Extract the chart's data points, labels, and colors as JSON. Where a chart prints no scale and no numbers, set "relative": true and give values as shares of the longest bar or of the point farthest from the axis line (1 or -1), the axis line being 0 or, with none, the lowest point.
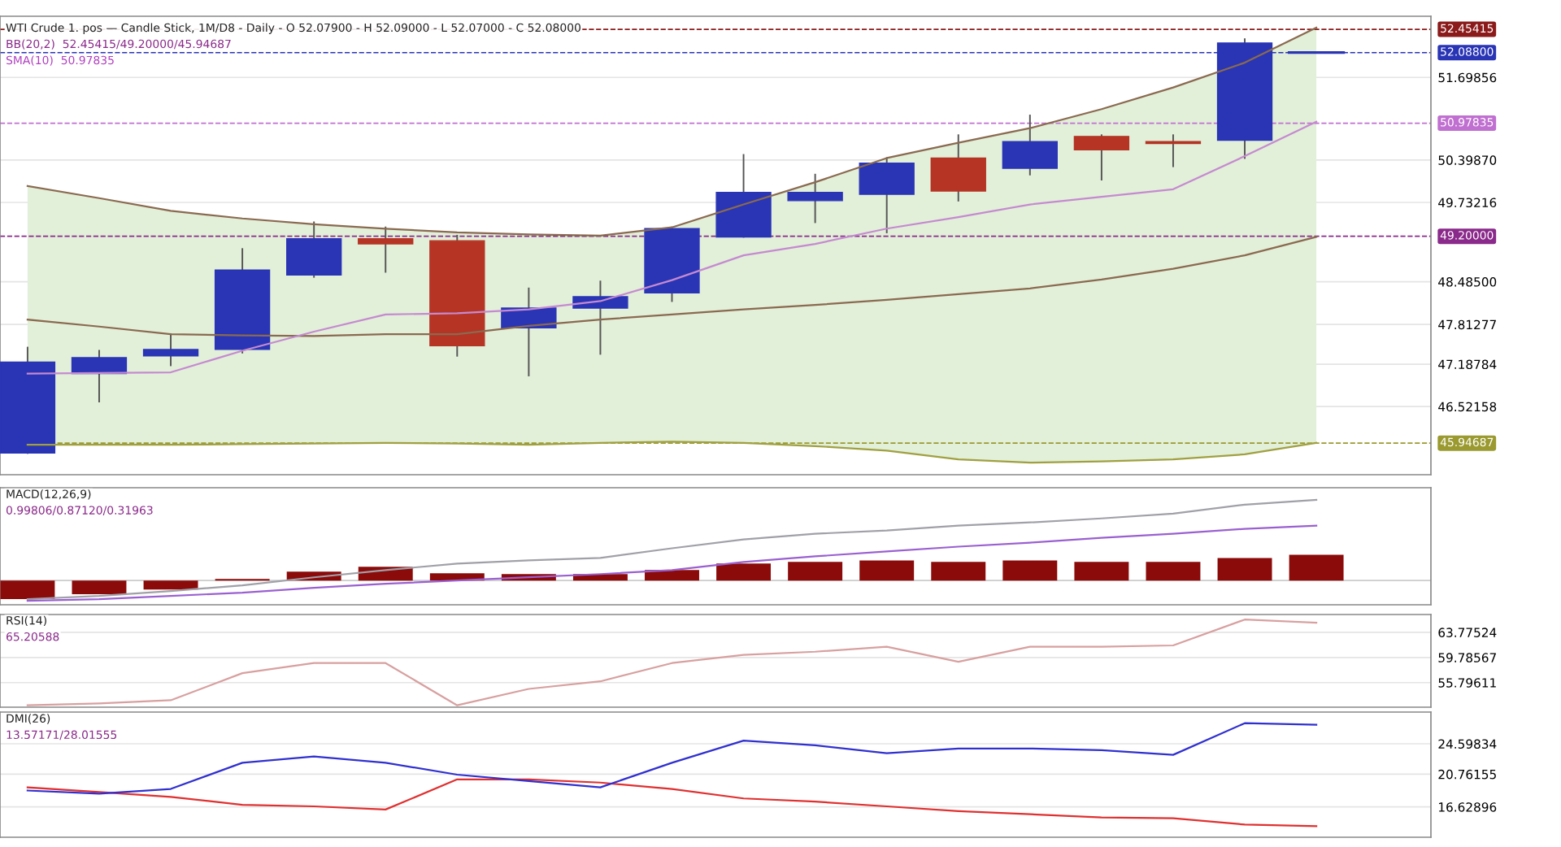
{
  "chart_data": [
    {
      "type": "candlestick",
      "title": "WTI Crude 1. pos — Candle Stick, 1M/D8 - Daily - O 52.07900 - H 52.09000 - L 52.07000 - C 52.08000",
      "subtitle": "BB(20,2)  52.45415/49.20000/45.94687",
      "annotations": [
        "SMA(10)  50.97835"
      ],
      "categories": [
        null,
        null,
        null,
        null,
        null,
        null,
        null,
        null,
        null,
        null,
        null,
        null,
        null,
        null,
        null,
        null,
        null,
        null,
        null
      ],
      "ohlc": [
        [
          45.79,
          47.45,
          45.79,
          47.22
        ],
        [
          47.04,
          47.4,
          46.6,
          47.29
        ],
        [
          47.32,
          47.66,
          47.17,
          47.42
        ],
        [
          47.42,
          49.0,
          47.37,
          48.67
        ],
        [
          48.59,
          49.42,
          48.56,
          49.16
        ],
        [
          49.16,
          49.34,
          48.64,
          49.08
        ],
        [
          49.13,
          49.21,
          47.32,
          47.48
        ],
        [
          47.76,
          48.38,
          47.01,
          48.07
        ],
        [
          48.07,
          48.49,
          47.35,
          48.25
        ],
        [
          48.31,
          49.34,
          48.18,
          49.32
        ],
        [
          49.19,
          50.48,
          49.19,
          49.89
        ],
        [
          49.76,
          50.17,
          49.42,
          49.89
        ],
        [
          49.86,
          50.43,
          49.26,
          50.35
        ],
        [
          50.43,
          50.79,
          49.76,
          49.91
        ],
        [
          50.27,
          51.1,
          50.17,
          50.69
        ],
        [
          50.77,
          50.79,
          50.09,
          50.56
        ],
        [
          50.69,
          50.79,
          50.3,
          50.66
        ],
        [
          50.71,
          52.3,
          50.43,
          52.24
        ],
        [
          52.09,
          52.09,
          52.09,
          52.09
        ]
      ],
      "colors": [
        "#2a35b5",
        "#2a35b5",
        "#2a35b5",
        "#2a35b5",
        "#2a35b5",
        "#b53424",
        "#b53424",
        "#2a35b5",
        "#2a35b5",
        "#2a35b5",
        "#2a35b5",
        "#2a35b5",
        "#2a35b5",
        "#b53424",
        "#2a35b5",
        "#b53424",
        "#b53424",
        "#2a35b5",
        "#2a35b5"
      ],
      "series": [
        {
          "type": "line",
          "color": "#8a6a50",
          "values": [
            49.99,
            49.8,
            49.6,
            49.48,
            49.39,
            49.32,
            49.26,
            49.23,
            49.21,
            49.34,
            49.7,
            50.05,
            50.43,
            50.67,
            50.9,
            51.2,
            51.54,
            51.93,
            52.48
          ]
        },
        {
          "type": "line",
          "color": "#a0a040",
          "values": [
            45.92,
            45.92,
            45.92,
            45.93,
            45.94,
            45.95,
            45.94,
            45.92,
            45.95,
            45.97,
            45.95,
            45.9,
            45.83,
            45.69,
            45.64,
            45.66,
            45.69,
            45.77,
            45.95
          ]
        },
        {
          "type": "line",
          "color": "#8a6a50",
          "values": [
            47.89,
            47.78,
            47.66,
            47.64,
            47.63,
            47.66,
            47.66,
            47.79,
            47.89,
            47.97,
            48.05,
            48.12,
            48.2,
            48.29,
            48.38,
            48.52,
            48.69,
            48.9,
            49.19
          ],
          "upper": [
            49.99,
            49.8,
            49.6,
            49.48,
            49.39,
            49.32,
            49.26,
            49.23,
            49.21,
            49.34,
            49.7,
            50.05,
            50.43,
            50.67,
            50.9,
            51.2,
            51.54,
            51.93,
            52.48
          ],
          "lower": [
            45.92,
            45.92,
            45.92,
            45.93,
            45.94,
            45.95,
            45.94,
            45.92,
            45.95,
            45.97,
            45.95,
            45.9,
            45.83,
            45.69,
            45.64,
            45.66,
            45.69,
            45.77,
            45.95
          ]
        },
        {
          "type": "line",
          "color": "#c58ad0",
          "values": [
            47.04,
            47.05,
            47.06,
            47.4,
            47.7,
            47.97,
            47.99,
            48.05,
            48.18,
            48.51,
            48.9,
            49.08,
            49.32,
            49.5,
            49.7,
            49.82,
            49.94,
            50.46,
            51.0
          ]
        }
      ],
      "ref_lines": [
        {
          "axis": "y",
          "value": 52.45415,
          "label": "52.45415",
          "color": "#8b1a1a",
          "line_style": "dashed"
        },
        {
          "axis": "y",
          "value": 52.088,
          "label": "52.08800",
          "color": "#2a35b5",
          "line_style": "dashed"
        },
        {
          "axis": "y",
          "value": 50.97835,
          "label": "50.97835",
          "color": "#c070d0",
          "line_style": "dashed"
        },
        {
          "axis": "y",
          "value": 49.2,
          "label": "49.20000",
          "color": "#8a2a8a",
          "line_style": "dashed"
        },
        {
          "axis": "y",
          "value": 45.94687,
          "label": "45.94687",
          "color": "#9a9a30",
          "line_style": "dashed"
        }
      ],
      "ylim": [
        45.45,
        52.66
      ],
      "yticks": [
        46.52158,
        47.18784,
        47.81277,
        {
          "value": 48.485,
          "label": "48.48500"
        },
        49.73216,
        {
          "value": 50.3987,
          "label": "50.39870"
        },
        51.69856
      ],
      "grid": "y",
      "tick_labels": "y"
    },
    {
      "type": "bar",
      "title": "MACD(12,26,9)",
      "subtitle": "0.99806/0.87120/0.31963",
      "relative": true,
      "tick_labels": false,
      "categories": [
        null,
        null,
        null,
        null,
        null,
        null,
        null,
        null,
        null,
        null,
        null,
        null,
        null,
        null,
        null,
        null,
        null,
        null,
        null
      ],
      "series": [
        {
          "type": "bar",
          "color": "#8b0a0a",
          "values": [
            -0.23,
            -0.17,
            -0.11,
            0.02,
            0.11,
            0.17,
            0.09,
            0.08,
            0.08,
            0.13,
            0.21,
            0.23,
            0.25,
            0.23,
            0.25,
            0.23,
            0.23,
            0.28,
            0.32
          ]
        },
        {
          "type": "line",
          "color": "#a0a0a8",
          "values": [
            -0.23,
            -0.19,
            -0.13,
            -0.06,
            0.04,
            0.13,
            0.21,
            0.25,
            0.28,
            0.4,
            0.51,
            0.58,
            0.62,
            0.68,
            0.72,
            0.77,
            0.83,
            0.94,
            1.0
          ]
        },
        {
          "type": "line",
          "color": "#9a60d0",
          "values": [
            -0.25,
            -0.23,
            -0.19,
            -0.15,
            -0.09,
            -0.04,
            0,
            0.04,
            0.08,
            0.13,
            0.23,
            0.3,
            0.36,
            0.42,
            0.47,
            0.53,
            0.58,
            0.64,
            0.68
          ]
        }
      ]
    },
    {
      "type": "line",
      "title": "RSI(14)",
      "subtitle": "65.20588",
      "categories": [
        null,
        null,
        null,
        null,
        null,
        null,
        null,
        null,
        null,
        null,
        null,
        null,
        null,
        null,
        null,
        null,
        null,
        null,
        null
      ],
      "series": [
        {
          "color": "#d8a0a0",
          "values": [
            52.2,
            52.5,
            53.0,
            57.3,
            58.9,
            58.9,
            52.2,
            54.8,
            56.0,
            58.9,
            60.2,
            60.7,
            61.5,
            59.1,
            61.5,
            61.5,
            61.7,
            65.8,
            65.3
          ]
        }
      ],
      "ylim": [
        51.9,
        66.6
      ],
      "yticks": [
        55.79611,
        59.78567,
        63.77524
      ],
      "grid": "y",
      "tick_labels": "y"
    },
    {
      "type": "line",
      "title": "DMI(26)",
      "subtitle": "13.57171/28.01555",
      "categories": [
        null,
        null,
        null,
        null,
        null,
        null,
        null,
        null,
        null,
        null,
        null,
        null,
        null,
        null,
        null,
        null,
        null,
        null,
        null
      ],
      "series": [
        {
          "color": "#e03030",
          "values": [
            19.1,
            18.5,
            17.9,
            16.9,
            16.7,
            16.3,
            20.1,
            20.1,
            19.7,
            18.9,
            17.7,
            17.3,
            16.7,
            16.1,
            15.7,
            15.3,
            15.2,
            14.4,
            14.2
          ]
        },
        {
          "color": "#3030d0",
          "values": [
            18.7,
            18.3,
            18.9,
            22.2,
            23.0,
            22.2,
            20.7,
            19.9,
            19.1,
            22.2,
            25.0,
            24.4,
            23.4,
            24.0,
            24.0,
            23.8,
            23.2,
            27.2,
            27.0
          ]
        }
      ],
      "ylim": [
        12.8,
        28.6
      ],
      "yticks": [
        16.62896,
        20.76155,
        24.59834
      ],
      "grid": "y",
      "tick_labels": "y"
    }
  ]
}
